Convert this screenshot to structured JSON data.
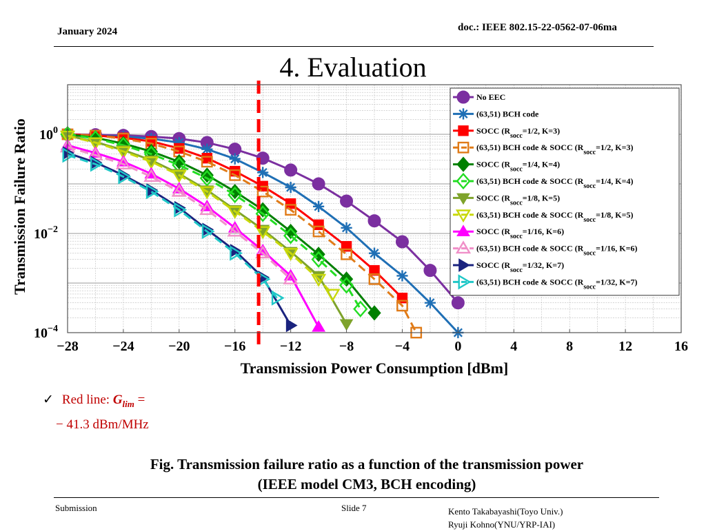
{
  "header": {
    "date": "January 2024",
    "doc": "doc.: IEEE 802.15-22-0562-07-06ma"
  },
  "title": "4. Evaluation",
  "note": {
    "check": "✓",
    "prefix": "Red line: ",
    "symbol": "G",
    "subscript": "lim",
    "eq": " =",
    "value": "− 41.3 dBm/MHz"
  },
  "caption": {
    "line1": "Fig. Transmission failure ratio as a function of the transmission power",
    "line2": "(IEEE model CM3,  BCH encoding)"
  },
  "footer": {
    "submission": "Submission",
    "slide": "Slide 7",
    "author1": "Kento Takabayashi(Toyo Univ.)",
    "author2": "Ryuji Kohno(YNU/YRP-IAI)"
  },
  "chart_data": {
    "type": "line",
    "xlabel": "Transmission Power Consumption [dBm]",
    "ylabel": "Transmission Failure Ratio",
    "xlim": [
      -28,
      16
    ],
    "ylim": [
      0.0001,
      10
    ],
    "yscale": "log",
    "grid": true,
    "legend_position": "top-right",
    "xticks": [
      "−28",
      "−24",
      "−20",
      "−16",
      "−12",
      "−8",
      "−4",
      "0",
      "4",
      "8",
      "12",
      "16"
    ],
    "yticks": [
      {
        "base": "10",
        "exp": "0",
        "value": 1
      },
      {
        "base": "10",
        "exp": "−2",
        "value": 0.01
      },
      {
        "base": "10",
        "exp": "−4",
        "value": 0.0001
      }
    ],
    "vline": {
      "x": -14.3,
      "color": "#ff0000"
    },
    "series": [
      {
        "name_parts": [
          "No EEC"
        ],
        "color": "#7b2fa0",
        "marker": "circle",
        "fill": true,
        "dash": false,
        "x": [
          -28,
          -26,
          -24,
          -22,
          -20,
          -18,
          -16,
          -14,
          -12,
          -10,
          -8,
          -6,
          -4,
          -2,
          0
        ],
        "y": [
          1,
          0.98,
          0.95,
          0.9,
          0.82,
          0.68,
          0.5,
          0.33,
          0.19,
          0.1,
          0.045,
          0.018,
          0.0068,
          0.0018,
          0.0004
        ]
      },
      {
        "name_parts": [
          "(63,51) BCH code"
        ],
        "color": "#1f6fb5",
        "marker": "asterisk",
        "fill": true,
        "dash": false,
        "x": [
          -28,
          -26,
          -24,
          -22,
          -20,
          -18,
          -16,
          -14,
          -12,
          -10,
          -8,
          -6,
          -4,
          -2,
          0
        ],
        "y": [
          1,
          0.95,
          0.9,
          0.82,
          0.68,
          0.5,
          0.32,
          0.17,
          0.085,
          0.035,
          0.013,
          0.004,
          0.0014,
          0.0004,
          0.0001
        ]
      },
      {
        "name_parts": [
          "SOCC (R",
          "socc",
          "=1/2, K=3)"
        ],
        "color": "#ff0000",
        "marker": "square",
        "fill": true,
        "dash": false,
        "x": [
          -28,
          -26,
          -24,
          -22,
          -20,
          -18,
          -16,
          -14,
          -12,
          -10,
          -8,
          -6,
          -4
        ],
        "y": [
          1,
          0.95,
          0.85,
          0.72,
          0.52,
          0.33,
          0.18,
          0.09,
          0.04,
          0.015,
          0.0055,
          0.0018,
          0.0005
        ]
      },
      {
        "name_parts": [
          "(63,51) BCH code & SOCC (R",
          "socc",
          "=1/2, K=3)"
        ],
        "color": "#e07b18",
        "marker": "square",
        "fill": false,
        "dash": true,
        "x": [
          -28,
          -26,
          -24,
          -22,
          -20,
          -18,
          -16,
          -14,
          -12,
          -10,
          -8,
          -6,
          -4,
          -3
        ],
        "y": [
          1,
          0.94,
          0.82,
          0.65,
          0.45,
          0.28,
          0.15,
          0.07,
          0.03,
          0.011,
          0.0038,
          0.0012,
          0.00035,
          0.0001
        ]
      },
      {
        "name_parts": [
          "SOCC (R",
          "socc",
          "=1/4, K=4)"
        ],
        "color": "#008000",
        "marker": "diamond",
        "fill": true,
        "dash": false,
        "x": [
          -28,
          -26,
          -24,
          -22,
          -20,
          -18,
          -16,
          -14,
          -12,
          -10,
          -8,
          -6
        ],
        "y": [
          1,
          0.85,
          0.65,
          0.45,
          0.28,
          0.15,
          0.07,
          0.03,
          0.011,
          0.0038,
          0.0012,
          0.00025
        ]
      },
      {
        "name_parts": [
          "(63,51) BCH code & SOCC (R",
          "socc",
          "=1/4, K=4)"
        ],
        "color": "#22dd22",
        "marker": "diamond",
        "fill": false,
        "dash": true,
        "x": [
          -28,
          -26,
          -24,
          -22,
          -20,
          -18,
          -16,
          -14,
          -12,
          -10,
          -8,
          -7
        ],
        "y": [
          1,
          0.82,
          0.6,
          0.4,
          0.24,
          0.13,
          0.06,
          0.025,
          0.009,
          0.003,
          0.0009,
          0.0003
        ]
      },
      {
        "name_parts": [
          "SOCC (R",
          "socc",
          "=1/8, K=5)"
        ],
        "color": "#7ea32b",
        "marker": "triangle-down",
        "fill": true,
        "dash": false,
        "x": [
          -28,
          -26,
          -24,
          -22,
          -20,
          -18,
          -16,
          -14,
          -12,
          -10,
          -8
        ],
        "y": [
          0.95,
          0.7,
          0.48,
          0.3,
          0.16,
          0.075,
          0.03,
          0.012,
          0.0043,
          0.0014,
          0.00015
        ]
      },
      {
        "name_parts": [
          "(63,51) BCH code & SOCC (R",
          "socc",
          "=1/8, K=5)"
        ],
        "color": "#c8d80a",
        "marker": "triangle-down",
        "fill": false,
        "dash": true,
        "x": [
          -28,
          -26,
          -24,
          -22,
          -20,
          -18,
          -16,
          -14,
          -12,
          -10,
          -9
        ],
        "y": [
          0.93,
          0.68,
          0.45,
          0.28,
          0.15,
          0.07,
          0.028,
          0.011,
          0.004,
          0.0012,
          0.0006
        ]
      },
      {
        "name_parts": [
          "SOCC (R",
          "socc",
          "=1/16, K=6)"
        ],
        "color": "#ff00ff",
        "marker": "triangle-up",
        "fill": true,
        "dash": false,
        "x": [
          -28,
          -26,
          -24,
          -22,
          -20,
          -18,
          -16,
          -14,
          -12,
          -10
        ],
        "y": [
          0.6,
          0.42,
          0.28,
          0.16,
          0.08,
          0.035,
          0.013,
          0.0045,
          0.0014,
          0.00013
        ]
      },
      {
        "name_parts": [
          "(63,51) BCH code & SOCC (R",
          "socc",
          "=1/16, K=6)"
        ],
        "color": "#f08fc8",
        "marker": "triangle-up",
        "fill": false,
        "dash": true,
        "x": [
          -28,
          -26,
          -24,
          -22,
          -20,
          -18,
          -16,
          -14,
          -12
        ],
        "y": [
          0.55,
          0.38,
          0.25,
          0.14,
          0.07,
          0.03,
          0.011,
          0.004,
          0.0012
        ]
      },
      {
        "name_parts": [
          "SOCC (R",
          "socc",
          "=1/32, K=7)"
        ],
        "color": "#1a237e",
        "marker": "triangle-right",
        "fill": true,
        "dash": false,
        "x": [
          -28,
          -26,
          -24,
          -22,
          -20,
          -18,
          -16,
          -14,
          -12
        ],
        "y": [
          0.42,
          0.27,
          0.15,
          0.075,
          0.033,
          0.012,
          0.0045,
          0.0013,
          0.00014
        ]
      },
      {
        "name_parts": [
          "(63,51) BCH code & SOCC (R",
          "socc",
          "=1/32, K=7)"
        ],
        "color": "#1fc7c7",
        "marker": "triangle-right",
        "fill": false,
        "dash": true,
        "x": [
          -28,
          -26,
          -24,
          -22,
          -20,
          -18,
          -16,
          -14,
          -13
        ],
        "y": [
          0.38,
          0.25,
          0.14,
          0.07,
          0.03,
          0.011,
          0.004,
          0.0012,
          0.0005
        ]
      }
    ]
  }
}
